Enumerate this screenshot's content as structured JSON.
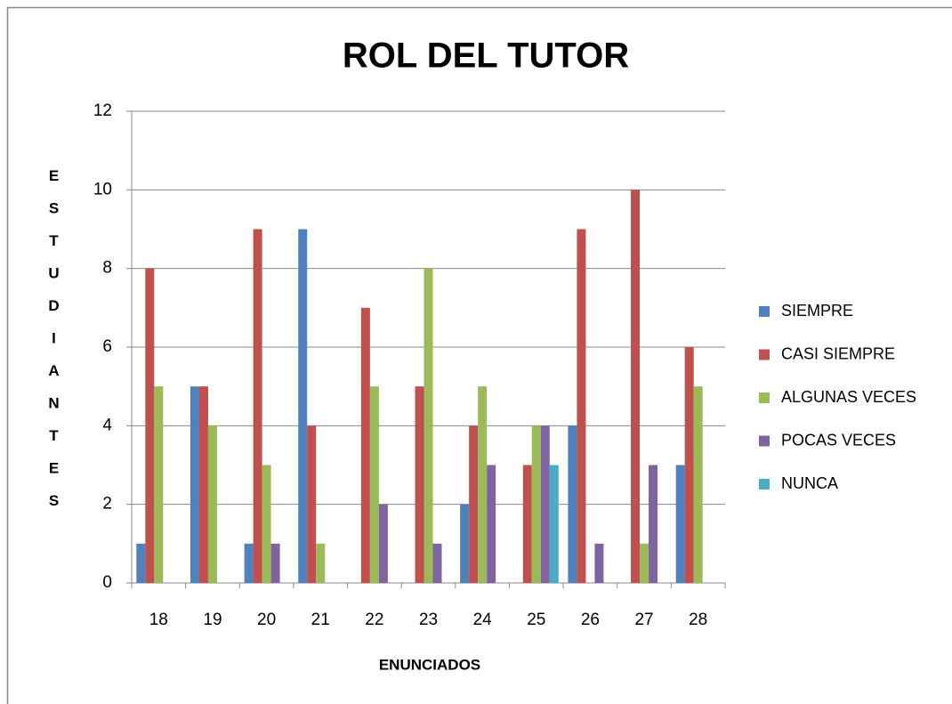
{
  "chart_data": {
    "type": "bar",
    "title": "ROL DEL TUTOR",
    "x_label": "ENUNCIADOS",
    "y_label": "ESTUDIANTES",
    "categories": [
      "18",
      "19",
      "20",
      "21",
      "22",
      "23",
      "24",
      "25",
      "26",
      "27",
      "28"
    ],
    "series": [
      {
        "name": "SIEMPRE",
        "color": "#4f81bd",
        "values": [
          1,
          5,
          1,
          9,
          0,
          0,
          2,
          0,
          4,
          0,
          3
        ]
      },
      {
        "name": "CASI SIEMPRE",
        "color": "#c0504d",
        "values": [
          8,
          5,
          9,
          4,
          7,
          5,
          4,
          3,
          9,
          10,
          6
        ]
      },
      {
        "name": "ALGUNAS VECES",
        "color": "#9bbb59",
        "values": [
          5,
          4,
          3,
          1,
          5,
          8,
          5,
          4,
          0,
          1,
          5
        ]
      },
      {
        "name": "POCAS VECES",
        "color": "#8064a2",
        "values": [
          0,
          0,
          1,
          0,
          2,
          1,
          3,
          4,
          1,
          3,
          0
        ]
      },
      {
        "name": "NUNCA",
        "color": "#4bacc6",
        "values": [
          0,
          0,
          0,
          0,
          0,
          0,
          0,
          3,
          0,
          0,
          0
        ]
      }
    ],
    "ylim": [
      0,
      12
    ],
    "yticks": [
      0,
      2,
      4,
      6,
      8,
      10,
      12
    ],
    "grid": true,
    "legend": "right"
  }
}
